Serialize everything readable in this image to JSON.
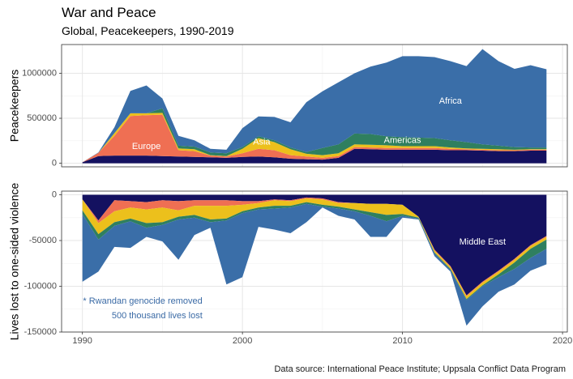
{
  "chart_data": {
    "type": "area",
    "title": "War and Peace",
    "subtitle": "Global, Peacekeepers, 1990-2019",
    "caption": "Data source: International Peace Institute; Uppsala Conflict Data Program",
    "x": [
      1990,
      1991,
      1992,
      1993,
      1994,
      1995,
      1996,
      1997,
      1998,
      1999,
      2000,
      2001,
      2002,
      2003,
      2004,
      2005,
      2006,
      2007,
      2008,
      2009,
      2010,
      2011,
      2012,
      2013,
      2014,
      2015,
      2016,
      2017,
      2018,
      2019
    ],
    "region_colors": {
      "Middle East": "#141160",
      "Europe": "#ef6f53",
      "Asia": "#ecc01c",
      "Americas": "#2f7f5f",
      "Africa": "#3a6ea8"
    },
    "panels": [
      {
        "name": "peacekeepers",
        "ylabel": "Peacekeepers",
        "ylim": [
          -40000,
          1320000
        ],
        "yticks": [
          0,
          500000,
          1000000
        ],
        "ytick_labels": [
          "0",
          "500000",
          "1000000"
        ],
        "stack_order": [
          "Middle East",
          "Europe",
          "Asia",
          "Americas",
          "Africa"
        ],
        "series": [
          {
            "name": "Middle East",
            "values": [
              10000,
              80000,
              85000,
              85000,
              85000,
              80000,
              75000,
              70000,
              65000,
              60000,
              70000,
              75000,
              65000,
              50000,
              45000,
              40000,
              60000,
              160000,
              155000,
              150000,
              150000,
              150000,
              150000,
              145000,
              145000,
              140000,
              135000,
              135000,
              140000,
              140000
            ]
          },
          {
            "name": "Europe",
            "values": [
              0,
              35000,
              220000,
              440000,
              450000,
              460000,
              70000,
              65000,
              20000,
              15000,
              40000,
              85000,
              80000,
              40000,
              30000,
              20000,
              20000,
              20000,
              20000,
              20000,
              20000,
              20000,
              20000,
              15000,
              10000,
              10000,
              10000,
              10000,
              10000,
              10000
            ]
          },
          {
            "name": "Asia",
            "values": [
              0,
              0,
              30000,
              30000,
              20000,
              20000,
              20000,
              20000,
              5000,
              5000,
              50000,
              120000,
              90000,
              65000,
              30000,
              30000,
              30000,
              30000,
              30000,
              30000,
              20000,
              20000,
              20000,
              15000,
              10000,
              10000,
              10000,
              5000,
              5000,
              5000
            ]
          },
          {
            "name": "Americas",
            "values": [
              0,
              0,
              0,
              0,
              0,
              50000,
              30000,
              30000,
              30000,
              30000,
              20000,
              20000,
              20000,
              20000,
              20000,
              80000,
              100000,
              120000,
              120000,
              100000,
              100000,
              95000,
              90000,
              80000,
              70000,
              50000,
              40000,
              30000,
              20000,
              20000
            ]
          },
          {
            "name": "Africa",
            "values": [
              0,
              5000,
              65000,
              250000,
              310000,
              110000,
              110000,
              70000,
              40000,
              40000,
              210000,
              220000,
              260000,
              280000,
              555000,
              630000,
              690000,
              670000,
              750000,
              820000,
              900000,
              905000,
              900000,
              880000,
              845000,
              1060000,
              940000,
              870000,
              915000,
              870000
            ]
          }
        ],
        "labels": [
          {
            "name": "Africa",
            "text": "Africa",
            "x": 2013,
            "y": 690000
          },
          {
            "name": "Americas",
            "text": "Americas",
            "x": 2010,
            "y": 250000
          },
          {
            "name": "Asia",
            "text": "Asia",
            "x": 2001.2,
            "y": 235000
          },
          {
            "name": "Europe",
            "text": "Europe",
            "x": 1994,
            "y": 185000
          }
        ]
      },
      {
        "name": "lives-lost",
        "ylabel": "Lives lost to one-sided violence",
        "ylim": [
          -150000,
          4000
        ],
        "yticks": [
          0,
          -50000,
          -100000,
          -150000
        ],
        "ytick_labels": [
          "0",
          "-50000",
          "-100000",
          "-150000"
        ],
        "stack_order": [
          "Middle East",
          "Europe",
          "Asia",
          "Americas",
          "Africa"
        ],
        "series": [
          {
            "name": "Middle East",
            "values": [
              -5000,
              -28000,
              -6000,
              -7000,
              -8000,
              -6000,
              -7000,
              -6000,
              -6000,
              -6000,
              -7000,
              -7000,
              -5000,
              -6000,
              -3000,
              -4000,
              -8000,
              -9000,
              -10000,
              -10000,
              -11000,
              -24000,
              -60000,
              -78000,
              -110000,
              -95000,
              -83000,
              -70000,
              -55000,
              -45000
            ]
          },
          {
            "name": "Europe",
            "values": [
              0,
              -3000,
              -12000,
              -7000,
              -8000,
              -8000,
              -10000,
              -6000,
              -6000,
              -6000,
              -4000,
              -2000,
              -1000,
              -1000,
              -1000,
              -1000,
              -1000,
              0,
              0,
              0,
              0,
              0,
              -1000,
              -1000,
              -1000,
              -1000,
              -1000,
              -1000,
              -1000,
              -1000
            ]
          },
          {
            "name": "Asia",
            "values": [
              -12000,
              -12000,
              -12000,
              -12000,
              -15000,
              -16000,
              -7000,
              -10000,
              -15000,
              -14000,
              -7000,
              -5000,
              -6000,
              -5000,
              -4000,
              -6000,
              -4000,
              -7000,
              -9000,
              -12000,
              -10000,
              -1000,
              -2000,
              -2000,
              -3000,
              -3000,
              -3000,
              -3000,
              -3000,
              -3000
            ]
          },
          {
            "name": "Americas",
            "values": [
              -4000,
              -6000,
              -4000,
              -3000,
              -5000,
              -3000,
              -3000,
              -3000,
              -3000,
              -2000,
              -2000,
              -2000,
              -3000,
              -2000,
              -2000,
              -2000,
              -2000,
              -2000,
              -4000,
              -7000,
              -2000,
              -1000,
              -1000,
              -1000,
              -1000,
              -1000,
              -3000,
              -7000,
              -10000,
              -10000
            ]
          },
          {
            "name": "Africa",
            "values": [
              -74000,
              -35000,
              -23000,
              -29000,
              -10000,
              -18000,
              -44000,
              -19000,
              -6000,
              -70000,
              -70000,
              -19000,
              -23000,
              -28000,
              -20000,
              -1000,
              -8000,
              -9000,
              -23000,
              -17000,
              -2000,
              -1000,
              -3000,
              -2000,
              -28000,
              -22000,
              -16000,
              -17000,
              -14000,
              -17000
            ]
          }
        ],
        "labels": [
          {
            "name": "Middle East",
            "text": "Middle East",
            "x": 2015,
            "y": -52000
          }
        ],
        "annotation": {
          "line1": "* Rwandan genocide removed",
          "line2": "500 thousand lives lost",
          "x": 1997.5,
          "y": -120000
        }
      }
    ],
    "xticks": [
      1990,
      2000,
      2010,
      2020
    ],
    "xtick_labels": [
      "1990",
      "2000",
      "2010",
      "2020"
    ],
    "xlim": [
      1988.7,
      2020.3
    ],
    "grid": true,
    "legend": "none"
  }
}
